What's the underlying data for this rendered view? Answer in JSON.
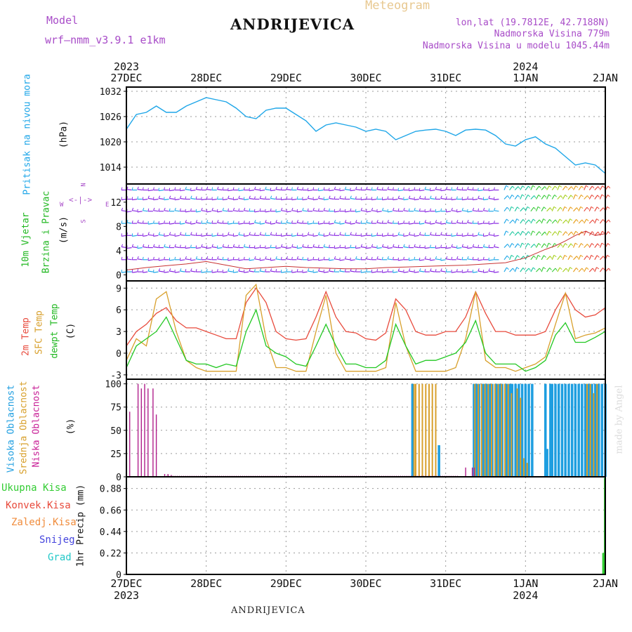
{
  "header": {
    "model_label": "Model",
    "model_name": "wrf—nmm_v3.9.1  e1km",
    "station": "ANDRIJEVICA",
    "meteogram": "Meteogram",
    "lonlat": "lon,lat (19.7812E, 42.7188N)",
    "altitude": "Nadmorska Visina 779m",
    "model_altitude": "Nadmorska Visina u modelu 1045.44m",
    "footer_station": "ANDRIJEVICA",
    "credit": "made by Angel"
  },
  "colors": {
    "pressure": "#1ea6e8",
    "temp2m": "#e84a3c",
    "sfc": "#d8a02c",
    "dew": "#22c822",
    "high_cloud": "#1e9ee0",
    "mid_cloud": "#d8a02c",
    "low_cloud": "#b0208c",
    "wind_purple": "#8a2be2",
    "precip_total": "#33cc33"
  },
  "time_axis": {
    "ticks_top": [
      "27DEC",
      "28DEC",
      "29DEC",
      "30DEC",
      "31DEC",
      "1JAN",
      "2JAN"
    ],
    "years_top": [
      "2023",
      "2024"
    ],
    "ticks_bottom": [
      "27DEC",
      "28DEC",
      "29DEC",
      "30DEC",
      "31DEC",
      "1JAN",
      "2JAN"
    ],
    "years_bottom": [
      "2023",
      "2024"
    ]
  },
  "panels": {
    "pressure": {
      "ylabel_name": "Pritisak na nivou mora",
      "unit": "(hPa)",
      "yticks": [
        "1032",
        "1026",
        "1020",
        "1014"
      ]
    },
    "wind": {
      "ylabel_name1": "10m Vjetar",
      "ylabel_name2": "Brzina i Pravac",
      "unit": "(m/s)",
      "yticks": [
        "12",
        "8",
        "4",
        "0"
      ],
      "compass": {
        "n": "N",
        "w": "W",
        "e": "E",
        "s": "S"
      }
    },
    "temp": {
      "label_2m": "2m Temp",
      "label_sfc": "SFC Temp",
      "label_dew": "dewpt Temp",
      "unit": "(C)",
      "yticks": [
        "9",
        "6",
        "3",
        "0",
        "-3"
      ]
    },
    "cloud": {
      "label_high": "Visoka Oblacnost",
      "label_mid": "Srednja Oblacnost",
      "label_low": "Niska Oblacnost",
      "unit": "(%)",
      "yticks": [
        "100",
        "75",
        "50",
        "25",
        "0"
      ]
    },
    "precip": {
      "legend": [
        "Ukupna Kisa",
        "Konvek.Kisa",
        "Zaledj.Kisa",
        "Snijeg",
        "Grad"
      ],
      "ylabel": "1hr Precip (mm)",
      "yticks": [
        "0.88",
        "0.66",
        "0.44",
        "0.22",
        "0"
      ]
    }
  },
  "chart_data": [
    {
      "type": "line",
      "name": "pressure",
      "x_hours": [
        0,
        3,
        6,
        9,
        12,
        15,
        18,
        21,
        24,
        27,
        30,
        33,
        36,
        39,
        42,
        45,
        48,
        51,
        54,
        57,
        60,
        63,
        66,
        69,
        72,
        75,
        78,
        81,
        84,
        87,
        90,
        93,
        96,
        99,
        102,
        105,
        108,
        111,
        114,
        117,
        120,
        123,
        126,
        129,
        132,
        135,
        138,
        141,
        144
      ],
      "values": [
        1023,
        1026.5,
        1027,
        1028.5,
        1027,
        1027,
        1028.5,
        1029.5,
        1030.5,
        1030,
        1029.5,
        1028,
        1026,
        1025.5,
        1027.5,
        1028,
        1028,
        1026.5,
        1025,
        1022.5,
        1024,
        1024.5,
        1024,
        1023.5,
        1022.5,
        1023,
        1022.5,
        1020.5,
        1021.5,
        1022.5,
        1022.8,
        1023,
        1022.5,
        1021.5,
        1022.8,
        1023,
        1022.8,
        1021.5,
        1019.5,
        1019,
        1020.5,
        1021.2,
        1019.5,
        1018.5,
        1016.5,
        1014.5,
        1015,
        1014.5,
        1012.5
      ],
      "ylim": [
        1010,
        1033
      ]
    },
    {
      "type": "line",
      "name": "wind_speed",
      "x_hours": [
        0,
        6,
        12,
        18,
        24,
        30,
        36,
        42,
        48,
        54,
        60,
        66,
        72,
        78,
        84,
        90,
        96,
        102,
        108,
        114,
        120,
        123,
        126,
        129,
        132,
        135,
        138,
        141,
        144
      ],
      "values": [
        0.8,
        1.2,
        1.5,
        1.8,
        2.2,
        1.6,
        1.0,
        1.2,
        1.4,
        1.2,
        1.1,
        1.0,
        1.0,
        1.2,
        1.3,
        1.4,
        1.5,
        1.6,
        1.8,
        2.0,
        2.8,
        3.5,
        4.2,
        4.8,
        5.6,
        6.5,
        7.2,
        6.5,
        6.8
      ],
      "ylim": [
        -1,
        15
      ]
    },
    {
      "type": "line",
      "name": "temperature",
      "x_hours": [
        0,
        3,
        6,
        9,
        12,
        15,
        18,
        21,
        24,
        27,
        30,
        33,
        36,
        39,
        42,
        45,
        48,
        51,
        54,
        57,
        60,
        63,
        66,
        69,
        72,
        75,
        78,
        81,
        84,
        87,
        90,
        93,
        96,
        99,
        102,
        105,
        108,
        111,
        114,
        117,
        120,
        123,
        126,
        129,
        132,
        135,
        138,
        141,
        144
      ],
      "series": [
        {
          "name": "2m Temp",
          "values": [
            1,
            3,
            4,
            5.5,
            6.3,
            4.5,
            3.5,
            3.5,
            3,
            2.5,
            2,
            2,
            7,
            9,
            7,
            3,
            2,
            1.8,
            2,
            5,
            8.5,
            5,
            3,
            2.8,
            2,
            1.8,
            2.8,
            7.5,
            6,
            3,
            2.5,
            2.5,
            3,
            3,
            5,
            8.5,
            5.5,
            3,
            3,
            2.5,
            2.5,
            2.5,
            3,
            6,
            8.3,
            6,
            5,
            5.3,
            6.3
          ]
        },
        {
          "name": "SFC Temp",
          "values": [
            -1,
            2,
            1,
            7.5,
            8.5,
            3,
            -1,
            -2,
            -2.5,
            -2.5,
            -2.5,
            -2.5,
            8,
            9.5,
            2,
            -2,
            -2,
            -2.5,
            -2.5,
            3,
            8,
            0,
            -2.5,
            -2.5,
            -2.5,
            -2.5,
            -2,
            7,
            1,
            -2.5,
            -2.5,
            -2.5,
            -2.5,
            -2,
            2,
            8.5,
            -1,
            -2,
            -2,
            -2.5,
            -2,
            -1.5,
            -0.5,
            4,
            8.3,
            2,
            2.5,
            2.8,
            3.5
          ]
        },
        {
          "name": "dewpt Temp",
          "values": [
            -2,
            1,
            2,
            3,
            5,
            2,
            -1,
            -1.5,
            -1.5,
            -2,
            -1.5,
            -1.8,
            3,
            6,
            1,
            0,
            -0.5,
            -1.5,
            -1.8,
            1,
            4,
            1,
            -1.5,
            -1.5,
            -2,
            -2,
            -1,
            4,
            1,
            -1.5,
            -1,
            -1,
            -0.5,
            0,
            1.5,
            4.5,
            0,
            -1.5,
            -1.5,
            -1.5,
            -2.5,
            -2,
            -1,
            2.5,
            4.2,
            1.5,
            1.5,
            2.2,
            3
          ]
        }
      ],
      "ylim": [
        -3.6,
        10
      ]
    },
    {
      "type": "bar",
      "name": "cloud_cover",
      "series": [
        {
          "name": "Visoka Oblacnost",
          "bars": [
            [
              86,
              100
            ],
            [
              104.5,
              100
            ],
            [
              105,
              100
            ],
            [
              105.5,
              100
            ],
            [
              106,
              100
            ],
            [
              107,
              100
            ],
            [
              107.5,
              100
            ],
            [
              108,
              100
            ],
            [
              108.5,
              100
            ],
            [
              109,
              100
            ],
            [
              109.5,
              100
            ],
            [
              110,
              100
            ],
            [
              111,
              100
            ],
            [
              111.5,
              100
            ],
            [
              112,
              100
            ],
            [
              112.5,
              100
            ],
            [
              113,
              100
            ],
            [
              114,
              100
            ],
            [
              114.5,
              100
            ],
            [
              115,
              100
            ],
            [
              115.5,
              100
            ],
            [
              116,
              100
            ],
            [
              117,
              100
            ],
            [
              118,
              100
            ],
            [
              119,
              100
            ],
            [
              120,
              100
            ],
            [
              121,
              100
            ],
            [
              122,
              100
            ],
            [
              126,
              100
            ],
            [
              126.5,
              30
            ],
            [
              127.5,
              100
            ],
            [
              128,
              100
            ],
            [
              129,
              100
            ],
            [
              130,
              100
            ],
            [
              131,
              100
            ],
            [
              132,
              100
            ],
            [
              133,
              100
            ],
            [
              134,
              100
            ],
            [
              135,
              100
            ],
            [
              136,
              100
            ],
            [
              137,
              100
            ],
            [
              138,
              100
            ],
            [
              139,
              100
            ],
            [
              140,
              100
            ],
            [
              141,
              100
            ],
            [
              142,
              100
            ],
            [
              143,
              100
            ],
            [
              144,
              100
            ],
            [
              94,
              34
            ]
          ]
        },
        {
          "name": "Srednja Oblacnost",
          "bars": [
            [
              86.5,
              100
            ],
            [
              87,
              100
            ],
            [
              88,
              100
            ],
            [
              89,
              100
            ],
            [
              90,
              100
            ],
            [
              91,
              100
            ],
            [
              92,
              100
            ],
            [
              93,
              100
            ],
            [
              104.8,
              100
            ],
            [
              105.8,
              100
            ],
            [
              106.8,
              100
            ],
            [
              107.8,
              100
            ],
            [
              108.8,
              100
            ],
            [
              109.8,
              100
            ],
            [
              110.8,
              100
            ],
            [
              111.8,
              100
            ],
            [
              112.8,
              100
            ],
            [
              113.8,
              100
            ],
            [
              114.8,
              100
            ],
            [
              115.8,
              90
            ],
            [
              117.5,
              95
            ],
            [
              118.5,
              85
            ],
            [
              119.5,
              20
            ],
            [
              120.5,
              15
            ],
            [
              138.5,
              100
            ],
            [
              139.5,
              100
            ],
            [
              140.5,
              90
            ],
            [
              141.5,
              100
            ]
          ]
        },
        {
          "name": "Niska Oblacnost",
          "bars": [
            [
              1,
              70
            ],
            [
              3.5,
              100
            ],
            [
              4.5,
              95
            ],
            [
              5.5,
              100
            ],
            [
              6.5,
              95
            ],
            [
              8,
              95
            ],
            [
              9,
              67
            ],
            [
              11.5,
              3
            ],
            [
              12.5,
              3
            ],
            [
              13.5,
              2
            ],
            [
              102,
              10
            ],
            [
              104,
              10
            ],
            [
              104.6,
              10
            ]
          ]
        }
      ],
      "ylim": [
        0,
        105
      ]
    },
    {
      "type": "bar",
      "name": "precipitation",
      "series": [
        {
          "name": "Ukupna Kisa",
          "bars": [
            [
              143.5,
              0.22
            ],
            [
              144,
              0.99
            ]
          ]
        },
        {
          "name": "Konvek.Kisa",
          "bars": []
        },
        {
          "name": "Zaledj.Kisa",
          "bars": []
        },
        {
          "name": "Snijeg",
          "bars": []
        },
        {
          "name": "Grad",
          "bars": []
        }
      ],
      "ylim": [
        0,
        1
      ]
    }
  ]
}
